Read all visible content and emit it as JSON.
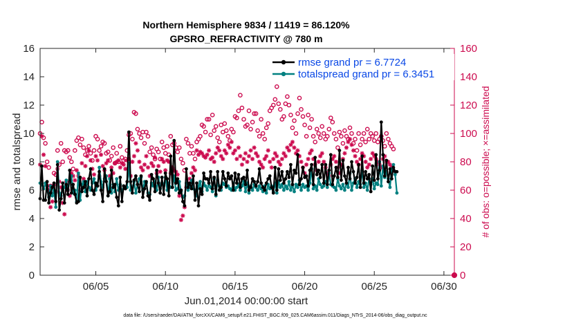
{
  "chart_data": {
    "type": "line",
    "title_line1": "Northern Hemisphere 9834 / 11419 = 86.120%",
    "title_line2": "GPSRO_REFRACTIVITY @ 780 m",
    "ylabel_left": "rmse and totalspread",
    "ylabel_right": "# of obs: o=possible; ×=assimilated",
    "xlabel": "Jun.01,2014 00:00:00 start",
    "footnote": "data file: /Users/raeder/DAI/ATM_forcXX/CAM6_setup/f.e21.FHIST_BGC.f09_025.CAM6assim.011/Diags_NTrS_2014-06/obs_diag_output.nc",
    "xlim": [
      1,
      30.75
    ],
    "ylim_left": [
      0,
      16
    ],
    "ylim_right": [
      0,
      160
    ],
    "yticks_left": [
      "0",
      "2",
      "4",
      "6",
      "8",
      "10",
      "12",
      "14",
      "16"
    ],
    "yticks_right": [
      "0",
      "20",
      "40",
      "60",
      "80",
      "100",
      "120",
      "140",
      "160"
    ],
    "xticks": [
      {
        "day": 5,
        "label": "06/05"
      },
      {
        "day": 10,
        "label": "06/10"
      },
      {
        "day": 15,
        "label": "06/15"
      },
      {
        "day": 20,
        "label": "06/20"
      },
      {
        "day": 25,
        "label": "06/25"
      },
      {
        "day": 30,
        "label": "06/30"
      }
    ],
    "colors": {
      "rmse": "#000000",
      "totalspread": "#008080",
      "obs": "#cc0a4e",
      "legend_text": "#0a48e6",
      "right_axis": "#cc0a4e"
    },
    "x_start_day": 1.0,
    "x_step_days": 0.125,
    "series": [
      {
        "name": "rmse grand pr = 6.7724",
        "values": [
          5.4,
          7.7,
          5.3,
          5.3,
          6.6,
          5.1,
          5.8,
          6.2,
          6.5,
          5.2,
          7.8,
          4.6,
          5.4,
          6.5,
          5.1,
          6.4,
          5.7,
          7.4,
          5.8,
          6.4,
          5.7,
          5.1,
          5.2,
          6.9,
          5.9,
          6.2,
          6.6,
          5.6,
          6.8,
          7.5,
          6.0,
          5.7,
          6.5,
          6.3,
          7.3,
          6.0,
          5.2,
          7.5,
          6.6,
          5.6,
          5.9,
          7.4,
          6.2,
          6.4,
          5.5,
          4.9,
          6.9,
          5.2,
          6.3,
          6.1,
          6.6,
          10.1,
          6.6,
          5.8,
          6.7,
          7.0,
          6.4,
          5.9,
          7.0,
          5.5,
          6.1,
          6.6,
          5.6,
          5.3,
          7.1,
          6.8,
          5.9,
          7.4,
          6.5,
          5.8,
          6.9,
          5.7,
          7.2,
          6.8,
          5.6,
          8.4,
          6.2,
          9.5,
          6.5,
          6.8,
          5.8,
          6.0,
          5.2,
          4.9,
          7.5,
          6.2,
          6.5,
          6.1,
          7.0,
          5.3,
          6.5,
          4.9,
          6.1,
          5.7,
          7.2,
          6.8,
          6.8,
          6.5,
          7.3,
          6.1,
          6.9,
          5.7,
          7.3,
          6.0,
          6.2,
          7.3,
          6.8,
          6.3,
          7.2,
          6.8,
          7.0,
          6.0,
          7.2,
          6.5,
          7.1,
          6.2,
          6.8,
          6.9,
          6.4,
          7.4,
          6.0,
          6.2,
          6.8,
          6.6,
          6.3,
          6.6,
          7.5,
          6.5,
          6.2,
          6.0,
          6.5,
          6.8,
          7.0,
          6.2,
          5.8,
          7.6,
          6.0,
          7.5,
          6.7,
          7.3,
          6.5,
          6.8,
          7.3,
          6.9,
          7.8,
          6.4,
          7.4,
          7.2,
          8.5,
          6.4,
          6.8,
          7.6,
          6.9,
          7.0,
          6.3,
          7.4,
          7.8,
          6.4,
          8.3,
          7.1,
          7.4,
          6.9,
          7.8,
          6.5,
          7.8,
          6.4,
          7.4,
          8.5,
          6.4,
          7.0,
          7.6,
          6.9,
          8.8,
          6.7,
          8.1,
          7.0,
          6.5,
          7.6,
          6.8,
          8.0,
          7.3,
          6.5,
          6.9,
          7.8,
          6.2,
          8.4,
          6.5,
          7.3,
          6.8,
          7.1,
          5.9,
          7.7,
          6.7,
          8.5,
          6.8,
          7.4,
          10.8,
          8.5,
          7.0,
          8.1,
          6.6,
          7.5,
          6.8,
          7.6,
          7.3,
          7.3
        ]
      },
      {
        "name": "totalspread grand pr = 6.3451",
        "values": [
          6.5,
          6.4,
          6.1,
          6.5,
          6.0,
          5.5,
          6.3,
          5.6,
          6.0,
          4.8,
          8.0,
          5.8,
          5.6,
          6.0,
          6.2,
          6.7,
          6.0,
          6.7,
          7.0,
          5.8,
          6.0,
          5.2,
          7.2,
          5.3,
          6.4,
          6.6,
          5.9,
          6.6,
          6.2,
          6.0,
          6.5,
          6.8,
          6.0,
          6.3,
          7.6,
          6.6,
          6.2,
          6.8,
          7.0,
          5.6,
          6.8,
          5.8,
          6.4,
          5.9,
          6.8,
          6.0,
          6.4,
          5.9,
          6.3,
          6.1,
          6.2,
          7.9,
          6.0,
          6.2,
          6.6,
          5.8,
          6.4,
          6.8,
          6.9,
          6.0,
          6.6,
          6.5,
          5.8,
          5.7,
          6.5,
          6.3,
          6.6,
          6.0,
          6.9,
          6.1,
          6.5,
          6.3,
          6.9,
          6.0,
          6.5,
          6.2,
          6.2,
          7.0,
          6.0,
          6.1,
          6.6,
          5.9,
          5.5,
          5.6,
          6.5,
          6.0,
          6.2,
          6.7,
          6.1,
          6.0,
          5.6,
          6.3,
          6.6,
          5.9,
          6.5,
          6.3,
          6.0,
          6.5,
          6.2,
          5.9,
          6.8,
          5.6,
          6.7,
          6.3,
          6.0,
          6.5,
          6.4,
          6.2,
          6.3,
          6.1,
          6.0,
          6.5,
          6.0,
          6.2,
          6.4,
          6.0,
          6.3,
          6.6,
          5.9,
          6.5,
          5.8,
          6.3,
          6.0,
          6.4,
          6.2,
          6.0,
          6.3,
          6.1,
          5.9,
          6.3,
          5.8,
          6.4,
          6.1,
          6.3,
          5.9,
          6.5,
          5.8,
          6.6,
          6.2,
          6.4,
          6.0,
          6.3,
          6.1,
          6.6,
          6.0,
          6.3,
          5.9,
          6.4,
          6.2,
          6.7,
          6.0,
          6.4,
          6.2,
          6.3,
          6.0,
          6.5,
          7.5,
          6.1,
          6.3,
          6.0,
          6.8,
          6.4,
          6.2,
          6.3,
          6.6,
          6.2,
          7.2,
          6.4,
          6.3,
          6.2,
          6.0,
          6.8,
          6.3,
          6.1,
          6.4,
          6.0,
          6.5,
          6.2,
          7.2,
          6.0,
          6.5,
          6.8,
          6.2,
          6.6,
          6.4,
          7.4,
          6.2,
          6.5,
          6.0,
          6.8,
          6.4,
          6.8,
          6.1,
          6.5,
          6.4,
          8.0,
          6.3,
          7.7,
          6.9,
          7.3,
          6.8,
          6.2,
          7.5,
          7.8,
          7.1,
          5.8
        ]
      },
      {
        "name": "obs possible",
        "axis": "right",
        "marker": "o",
        "values": [
          100,
          108,
          97,
          93,
          80,
          76,
          63,
          60,
          72,
          71,
          88,
          78,
          93,
          80,
          88,
          87,
          88,
          83,
          80,
          75,
          88,
          95,
          97,
          92,
          96,
          90,
          85,
          88,
          91,
          86,
          81,
          88,
          98,
          96,
          88,
          91,
          94,
          93,
          86,
          87,
          81,
          84,
          90,
          79,
          86,
          80,
          91,
          83,
          81,
          82,
          88,
          99,
          100,
          96,
          115,
          114,
          103,
          100,
          97,
          101,
          93,
          101,
          98,
          87,
          90,
          85,
          82,
          89,
          87,
          82,
          94,
          90,
          86,
          91,
          85,
          98,
          92,
          93,
          90,
          87,
          90,
          82,
          79,
          74,
          96,
          93,
          86,
          91,
          86,
          82,
          94,
          96,
          98,
          106,
          105,
          101,
          110,
          110,
          99,
          113,
          102,
          105,
          97,
          94,
          106,
          101,
          107,
          102,
          98,
          95,
          103,
          101,
          112,
          111,
          116,
          127,
          118,
          110,
          105,
          106,
          116,
          103,
          108,
          114,
          114,
          102,
          98,
          110,
          100,
          96,
          104,
          107,
          116,
          118,
          120,
          124,
          133,
          121,
          117,
          110,
          112,
          121,
          126,
          120,
          113,
          104,
          109,
          100,
          114,
          125,
          117,
          112,
          106,
          98,
          113,
          104,
          110,
          98,
          94,
          103,
          100,
          97,
          105,
          100,
          96,
          98,
          103,
          111,
          108,
          100,
          96,
          90,
          101,
          98,
          93,
          102,
          98,
          96,
          104,
          100,
          93,
          96,
          88,
          100,
          92,
          96,
          100,
          94,
          103,
          96,
          100,
          98,
          95,
          100,
          94,
          96,
          98,
          95,
          91,
          100,
          96,
          93,
          91,
          89
        ]
      },
      {
        "name": "obs assimilated",
        "axis": "right",
        "marker": "x",
        "values": [
          78,
          98,
          85,
          77,
          63,
          60,
          48,
          52,
          64,
          59,
          75,
          66,
          62,
          51,
          43,
          66,
          60,
          56,
          72,
          70,
          67,
          74,
          70,
          60,
          79,
          68,
          77,
          84,
          88,
          81,
          75,
          71,
          84,
          81,
          70,
          85,
          77,
          74,
          79,
          81,
          70,
          76,
          72,
          79,
          80,
          81,
          76,
          79,
          78,
          75,
          81,
          82,
          70,
          80,
          84,
          93,
          88,
          80,
          76,
          74,
          78,
          84,
          76,
          70,
          79,
          77,
          83,
          72,
          77,
          73,
          82,
          80,
          74,
          81,
          80,
          72,
          76,
          74,
          73,
          71,
          56,
          39,
          42,
          48,
          62,
          65,
          68,
          72,
          76,
          74,
          88,
          85,
          87,
          86,
          84,
          83,
          85,
          88,
          82,
          83,
          80,
          86,
          90,
          88,
          84,
          82,
          88,
          86,
          92,
          90,
          94,
          86,
          88,
          82,
          90,
          84,
          78,
          82,
          86,
          80,
          84,
          88,
          82,
          90,
          86,
          84,
          80,
          78,
          76,
          82,
          84,
          88,
          80,
          76,
          82,
          86,
          84,
          80,
          78,
          82,
          86,
          84,
          90,
          88,
          92,
          94,
          90,
          86,
          88,
          84,
          80,
          76,
          72,
          78,
          82,
          86,
          88,
          82,
          78,
          74,
          80,
          84,
          86,
          80,
          76,
          72,
          70,
          78,
          82,
          84,
          80,
          76,
          72,
          78,
          82,
          86,
          90,
          94,
          96,
          92,
          88,
          84,
          80,
          78,
          82,
          86,
          84,
          80,
          76,
          78,
          82,
          86,
          84,
          82,
          80,
          78,
          76,
          82,
          84,
          80,
          80,
          78,
          76,
          74
        ]
      }
    ],
    "legend": [
      {
        "label": "rmse grand pr = 6.7724",
        "series": "rmse"
      },
      {
        "label": "totalspread grand pr = 6.3451",
        "series": "totalspread"
      }
    ],
    "legend_placement": "top-right",
    "grid": false,
    "right_axis_zero_marker": true
  }
}
